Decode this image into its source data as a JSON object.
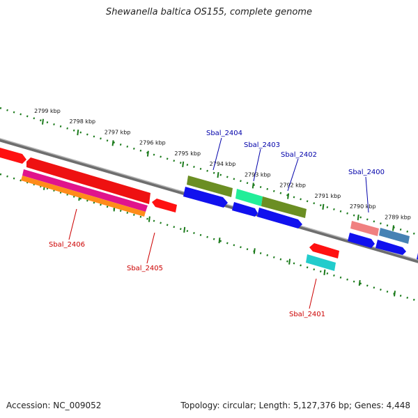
{
  "title": "Shewanella baltica OS155, complete genome",
  "footer": {
    "accession": "Accession: NC_009052",
    "summary": "Topology: circular; Length: 5,127,376 bp; Genes: 4,448"
  },
  "colors": {
    "backbone": "#7f7f7f",
    "tick": "#1a7a1a",
    "forward_label": "#0000aa",
    "reverse_label": "#cc0000"
  },
  "scale_labels": [
    "2799 kbp",
    "2798 kbp",
    "2797 kbp",
    "2796 kbp",
    "2795 kbp",
    "2794 kbp",
    "2793 kbp",
    "2792 kbp",
    "2791 kbp",
    "2790 kbp",
    "2789 kbp"
  ],
  "genes": [
    {
      "id": "Sbal_2404",
      "strand": "forward"
    },
    {
      "id": "Sbal_2403",
      "strand": "forward"
    },
    {
      "id": "Sbal_2402",
      "strand": "forward"
    },
    {
      "id": "Sbal_2400",
      "strand": "forward"
    },
    {
      "id": "Sbal_2406",
      "strand": "reverse"
    },
    {
      "id": "Sbal_2405",
      "strand": "reverse"
    },
    {
      "id": "Sbal_2401",
      "strand": "reverse"
    }
  ]
}
